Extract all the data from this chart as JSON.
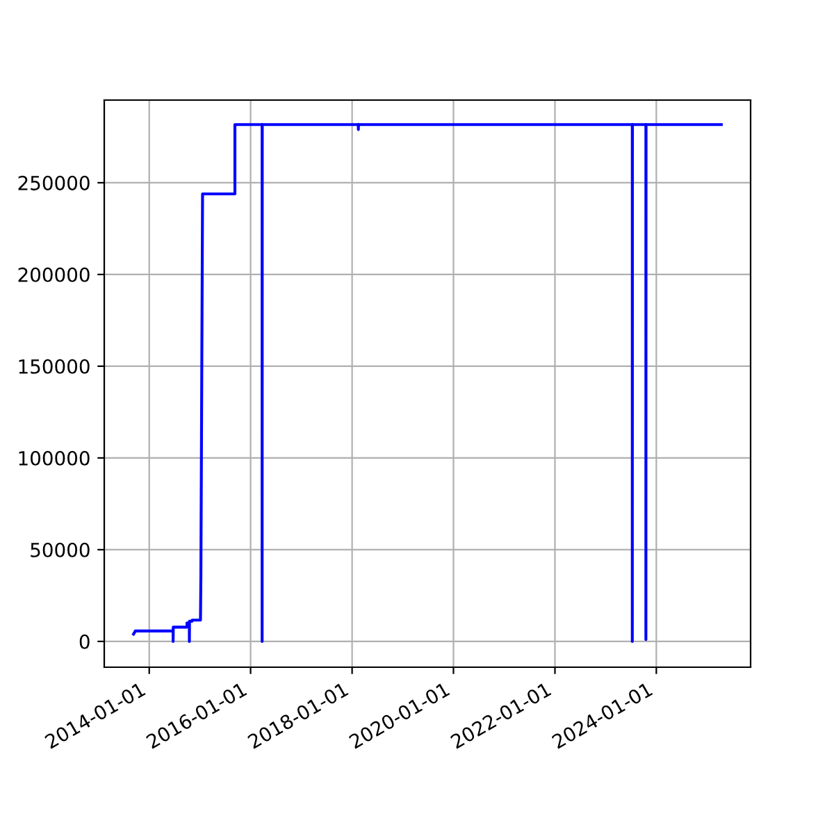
{
  "chart_data": {
    "type": "line",
    "color": "#0000ff",
    "grid": true,
    "x": [
      "2013-09-10",
      "2013-09-22",
      "2013-09-22",
      "2014-06-22",
      "2014-06-22",
      "2014-06-23",
      "2014-06-23",
      "2014-09-30",
      "2014-09-30",
      "2014-10-17",
      "2014-10-17",
      "2014-10-18",
      "2014-11-06",
      "2014-11-06",
      "2015-01-05",
      "2015-01-08",
      "2015-01-20",
      "2015-09-10",
      "2015-09-10",
      "2016-03-24",
      "2016-03-24",
      "2016-03-25",
      "2018-02-15",
      "2018-02-15",
      "2018-02-16",
      "2023-07-12",
      "2023-07-12",
      "2023-07-13",
      "2023-10-18",
      "2023-10-18",
      "2023-10-19",
      "2025-04-13"
    ],
    "values": [
      4000,
      5500,
      5700,
      5700,
      0,
      7800,
      7800,
      7800,
      10100,
      10100,
      0,
      11000,
      11000,
      11600,
      11600,
      35500,
      243900,
      243900,
      281700,
      281700,
      0,
      281700,
      281700,
      279000,
      281700,
      281700,
      0,
      281700,
      281700,
      1000,
      281700,
      281700
    ],
    "xlim": [
      "2013-02-11",
      "2025-11-10"
    ],
    "xticks": [
      "2014-01-01",
      "2016-01-01",
      "2018-01-01",
      "2020-01-01",
      "2022-01-01",
      "2024-01-01"
    ],
    "ylim": [
      -14050,
      295050
    ],
    "yticks": [
      0,
      50000,
      100000,
      150000,
      200000,
      250000
    ]
  }
}
